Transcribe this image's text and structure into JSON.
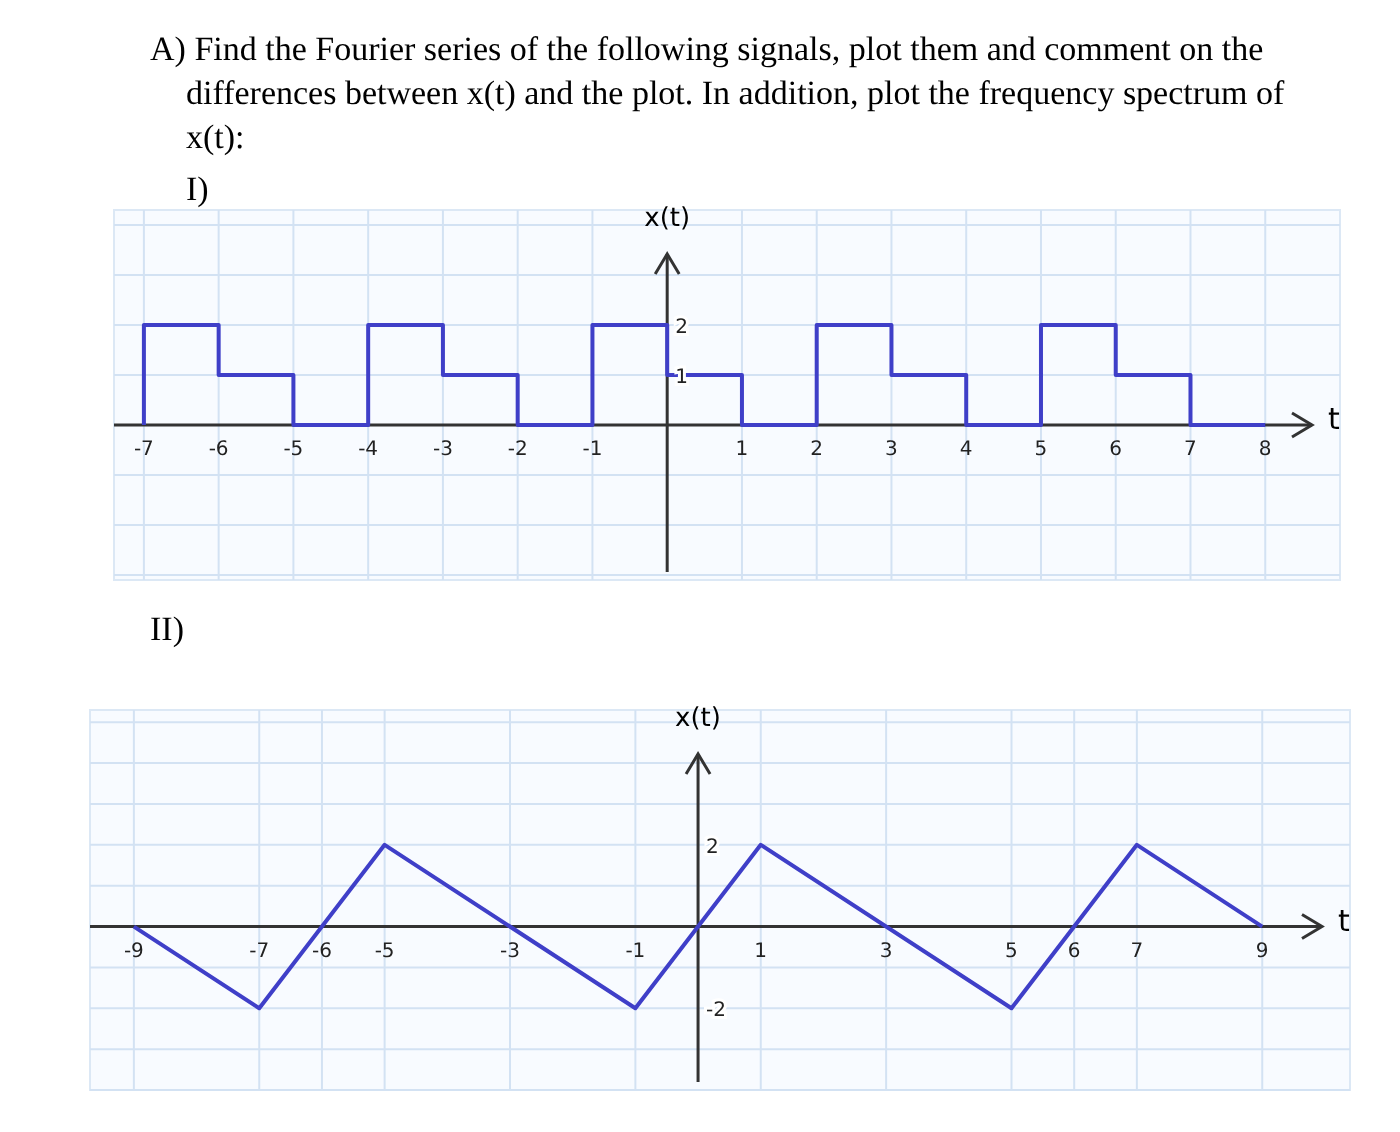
{
  "chart_data": [
    {
      "type": "line",
      "title": "A) Find the Fourier series of the following signals, plot them and comment on the differences between x(t) and the plot. In addition, plot the frequency spectrum of x(t):",
      "subtitle": "I)",
      "xlabel": "t",
      "ylabel": "x(t)",
      "x": [
        -7,
        -7,
        -6,
        -6,
        -5,
        -5,
        -4,
        -4,
        -3,
        -3,
        -2,
        -2,
        -1,
        -1,
        0,
        0,
        1,
        1,
        2,
        2,
        3,
        3,
        4,
        4,
        5,
        5,
        6,
        6,
        7,
        7,
        8
      ],
      "series": [
        {
          "color": "#3f3fc8",
          "values": [
            0,
            2,
            2,
            1,
            1,
            0,
            0,
            2,
            2,
            1,
            1,
            0,
            0,
            2,
            2,
            1,
            1,
            0,
            0,
            2,
            2,
            1,
            1,
            0,
            0,
            2,
            2,
            1,
            1,
            0,
            0
          ]
        }
      ],
      "xlim": [
        -7.4,
        9
      ],
      "ylim": [
        -3.1,
        4.3
      ],
      "xticks": [
        -7,
        -6,
        -5,
        -4,
        -3,
        -2,
        -1,
        1,
        2,
        3,
        4,
        5,
        6,
        7,
        8
      ],
      "yticks": [
        {
          "value": -3,
          "label": null
        },
        {
          "value": -2,
          "label": null
        },
        {
          "value": -1,
          "label": null
        },
        1,
        2,
        {
          "value": 3,
          "label": null
        },
        {
          "value": 4,
          "label": null
        }
      ],
      "grid": true,
      "marker": "none",
      "line_style": "solid"
    },
    {
      "type": "line",
      "title": "II)",
      "xlabel": "t",
      "ylabel": "x(t)",
      "x": [
        -9,
        -7,
        -5,
        -1,
        1,
        5,
        7,
        9
      ],
      "series": [
        {
          "color": "#3f3fc8",
          "values": [
            0,
            -2,
            2,
            -2,
            2,
            -2,
            2,
            0
          ]
        }
      ],
      "xlim": [
        -9.7,
        10.4
      ],
      "ylim": [
        -4,
        5.3
      ],
      "xticks": [
        -9,
        -7,
        -6,
        -5,
        -3,
        -1,
        1,
        3,
        5,
        6,
        7,
        9
      ],
      "yticks": [
        {
          "value": -4,
          "label": null
        },
        {
          "value": -3,
          "label": null
        },
        -2,
        {
          "value": -1,
          "label": null
        },
        {
          "value": 1,
          "label": null
        },
        2,
        {
          "value": 3,
          "label": null
        },
        {
          "value": 4,
          "label": null
        },
        {
          "value": 5,
          "label": null
        }
      ],
      "grid": true,
      "marker": "none",
      "line_style": "solid"
    }
  ]
}
